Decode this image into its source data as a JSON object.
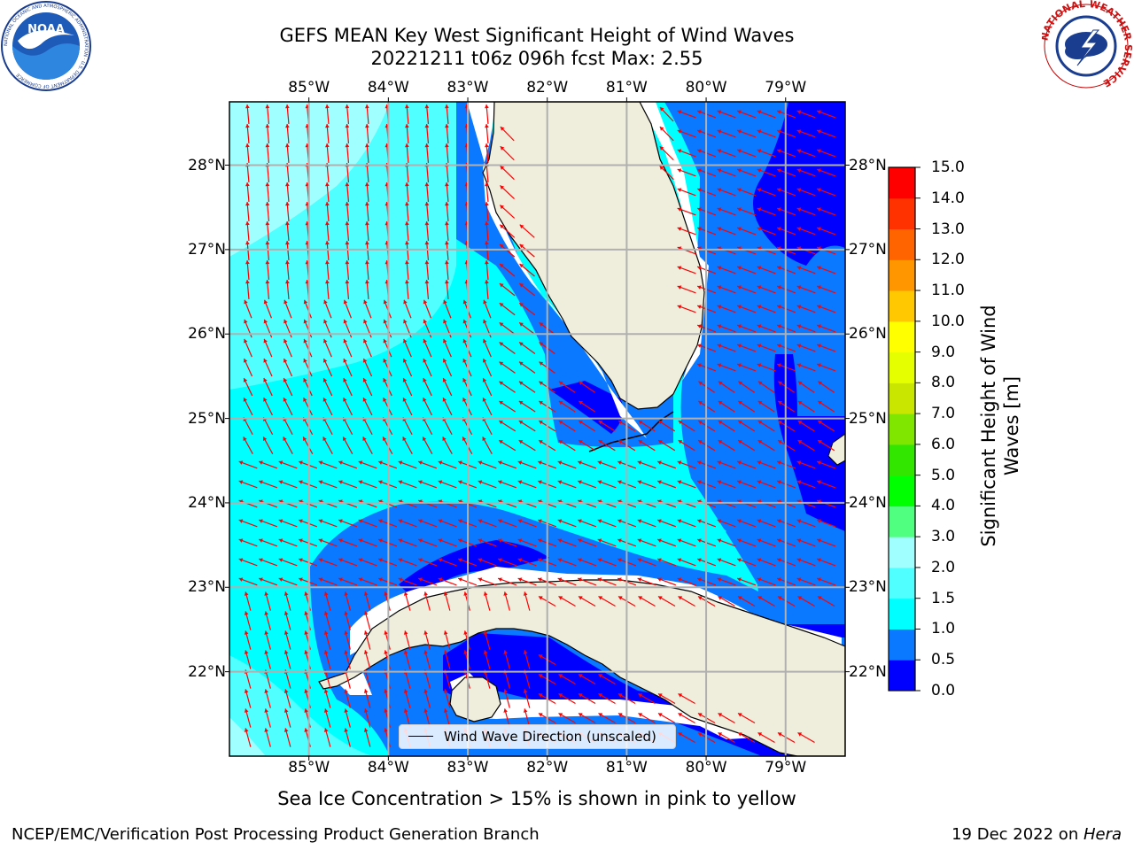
{
  "header": {
    "title": "GEFS MEAN Key West Significant Height of Wind Waves",
    "subtitle": "20221211 t06z 096h fcst   Max: 2.55"
  },
  "logos": {
    "left": {
      "name": "noaa-logo",
      "text": "NOAA",
      "ring_text": "NATIONAL OCEANIC AND ATMOSPHERIC ADMINISTRATION · U.S. DEPARTMENT OF COMMERCE"
    },
    "right": {
      "name": "nws-logo",
      "ring_text": "NATIONAL WEATHER SERVICE"
    }
  },
  "map": {
    "lon_labels": [
      "85°W",
      "84°W",
      "83°W",
      "82°W",
      "81°W",
      "80°W",
      "79°W"
    ],
    "lat_labels": [
      "28°N",
      "27°N",
      "26°N",
      "25°N",
      "24°N",
      "23°N",
      "22°N"
    ],
    "lon_values": [
      -85,
      -84,
      -83,
      -82,
      -81,
      -80,
      -79
    ],
    "lat_values": [
      28,
      27,
      26,
      25,
      24,
      23,
      22
    ],
    "extent": {
      "lon_min": -86.0,
      "lon_max": -78.25,
      "lat_min": 21.0,
      "lat_max": 28.75
    },
    "legend_label": "Wind Wave Direction (unscaled)",
    "land_color": "#efeddc",
    "arrow_color": "#ff0000"
  },
  "colorbar": {
    "title": "Significant Height of Wind Waves [m]",
    "labels": [
      "15.0",
      "14.0",
      "13.0",
      "12.0",
      "11.0",
      "10.0",
      "9.0",
      "8.0",
      "7.0",
      "6.0",
      "5.0",
      "4.0",
      "3.0",
      "2.0",
      "1.5",
      "1.0",
      "0.5",
      "0.0"
    ],
    "levels": [
      0.0,
      0.5,
      1.0,
      1.5,
      2.0,
      3.0,
      4.0,
      5.0,
      6.0,
      7.0,
      8.0,
      9.0,
      10.0,
      11.0,
      12.0,
      13.0,
      14.0,
      15.0
    ],
    "colors": [
      "#0000ff",
      "#0a78ff",
      "#00ffff",
      "#50ffff",
      "#a0ffff",
      "#50ff80",
      "#00ff00",
      "#32e600",
      "#80e600",
      "#c8e600",
      "#e6ff00",
      "#ffff00",
      "#ffc800",
      "#ff9600",
      "#ff6400",
      "#ff3200",
      "#ff0000"
    ]
  },
  "note": "Sea Ice Concentration > 15% is shown in pink to yellow",
  "footer": {
    "left": "NCEP/EMC/Verification Post Processing Product Generation Branch",
    "right_prefix": "19 Dec 2022 on ",
    "right_host": "Hera"
  }
}
